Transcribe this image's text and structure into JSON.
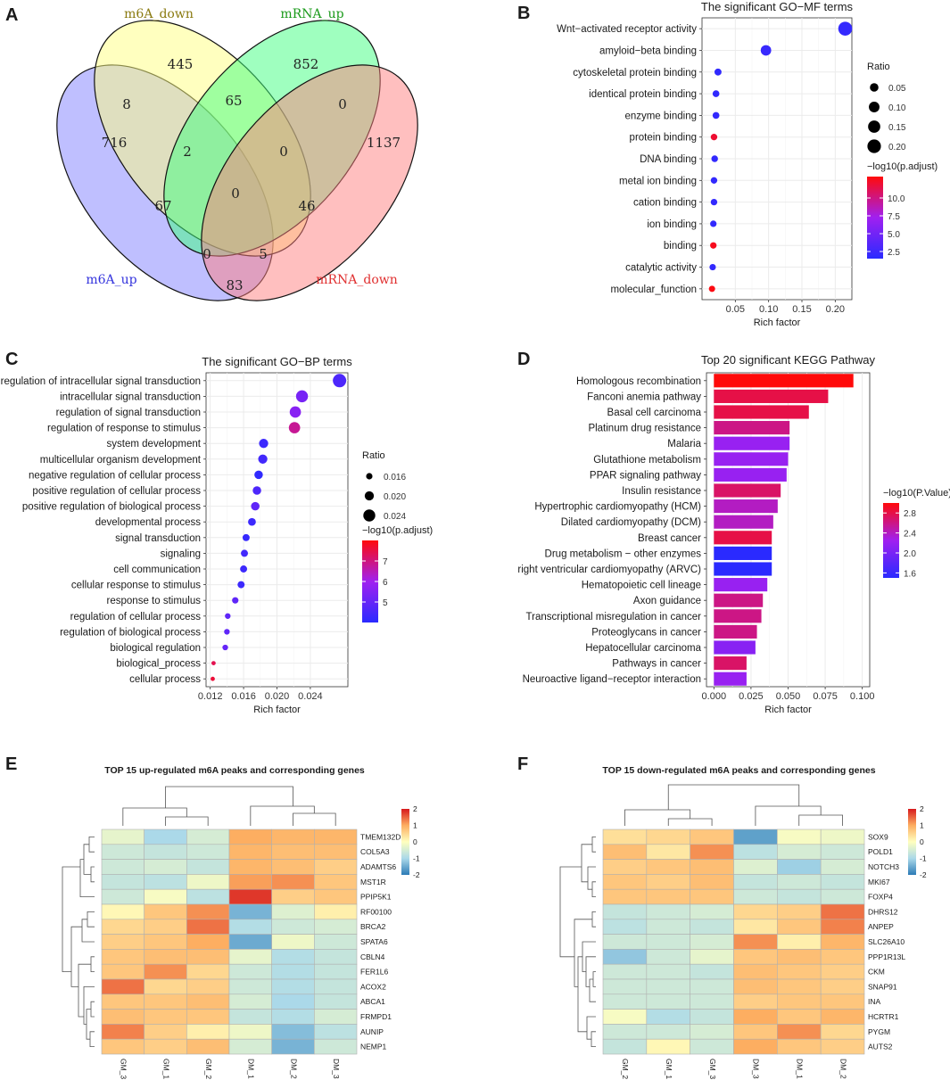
{
  "panel_letters": [
    "A",
    "B",
    "C",
    "D",
    "E",
    "F"
  ],
  "colors": {
    "venn_m6A_up": "#8080ff",
    "venn_m6A_down": "#ffff80",
    "venn_mRNA_up": "#40ff7f",
    "venn_mRNA_down": "#ff8080",
    "venn_label_m6A_up": "#3333dd",
    "venn_label_m6A_down": "#8a7a10",
    "venn_label_mRNA_up": "#1a9a1a",
    "venn_label_mRNA_down": "#e03030",
    "low": "#2a2aff",
    "mid": "#a020f0",
    "high": "#ff0a0a",
    "hm_low": "#2c7bb6",
    "hm_mid": "#ffffbf",
    "hm_high": "#d7191c",
    "panel_bg": "#ffffff",
    "grid": "#ebebeb"
  },
  "chart_data": [
    {
      "id": "A",
      "type": "venn",
      "sets": [
        "m6A_up",
        "m6A_down",
        "mRNA_up",
        "mRNA_down"
      ],
      "regions": [
        {
          "sets": [
            "m6A_up"
          ],
          "value": 716
        },
        {
          "sets": [
            "m6A_down"
          ],
          "value": 445
        },
        {
          "sets": [
            "mRNA_up"
          ],
          "value": 852
        },
        {
          "sets": [
            "mRNA_down"
          ],
          "value": 1137
        },
        {
          "sets": [
            "m6A_up",
            "m6A_down"
          ],
          "value": 8
        },
        {
          "sets": [
            "m6A_down",
            "mRNA_up"
          ],
          "value": 65
        },
        {
          "sets": [
            "mRNA_up",
            "mRNA_down"
          ],
          "value": 0
        },
        {
          "sets": [
            "m6A_up",
            "m6A_down",
            "mRNA_up"
          ],
          "value": 2
        },
        {
          "sets": [
            "m6A_down",
            "mRNA_up",
            "mRNA_down"
          ],
          "value": 0
        },
        {
          "sets": [
            "m6A_up",
            "mRNA_up"
          ],
          "value": 67
        },
        {
          "sets": [
            "m6A_up",
            "m6A_down",
            "mRNA_up",
            "mRNA_down"
          ],
          "value": 0
        },
        {
          "sets": [
            "m6A_down",
            "mRNA_down"
          ],
          "value": 46
        },
        {
          "sets": [
            "m6A_up",
            "mRNA_up",
            "mRNA_down"
          ],
          "value": 0
        },
        {
          "sets": [
            "m6A_up",
            "m6A_down",
            "mRNA_down"
          ],
          "value": 5
        },
        {
          "sets": [
            "m6A_up",
            "mRNA_down"
          ],
          "value": 83
        }
      ]
    },
    {
      "id": "B",
      "type": "scatter",
      "title": "The significant GO−MF terms",
      "xlabel": "Rich factor",
      "xlim": [
        0,
        0.225
      ],
      "xticks": [
        0.05,
        0.1,
        0.15,
        0.2
      ],
      "xtick_labels": [
        "0.05",
        "0.10",
        "0.15",
        "0.20"
      ],
      "categories": [
        "Wnt−activated receptor activity",
        "amyloid−beta binding",
        "cytoskeletal protein binding",
        "identical protein binding",
        "enzyme binding",
        "protein binding",
        "DNA binding",
        "metal ion binding",
        "cation binding",
        "ion binding",
        "binding",
        "catalytic activity",
        "molecular_function"
      ],
      "x": [
        0.215,
        0.096,
        0.024,
        0.021,
        0.021,
        0.018,
        0.019,
        0.018,
        0.018,
        0.017,
        0.017,
        0.016,
        0.015
      ],
      "color_value": [
        2.0,
        2.2,
        1.8,
        1.8,
        1.9,
        12.0,
        1.9,
        1.9,
        1.9,
        1.9,
        12.5,
        1.9,
        12.8
      ],
      "color_range": [
        1.5,
        13.0
      ],
      "size_legend_title": "Ratio",
      "size_legend_values": [
        0.05,
        0.1,
        0.15,
        0.2
      ],
      "size_legend_labels": [
        "0.05",
        "0.10",
        "0.15",
        "0.20"
      ],
      "color_legend_title": "−log10(p.adjust)",
      "color_legend_ticks": [
        2.5,
        5.0,
        7.5,
        10.0
      ],
      "color_legend_labels": [
        "2.5",
        "5.0",
        "7.5",
        "10.0"
      ]
    },
    {
      "id": "C",
      "type": "scatter",
      "title": "The significant GO−BP terms",
      "xlabel": "Rich factor",
      "xlim": [
        0.0115,
        0.0285
      ],
      "xticks": [
        0.012,
        0.016,
        0.02,
        0.024
      ],
      "xtick_labels": [
        "0.012",
        "0.016",
        "0.020",
        "0.024"
      ],
      "categories": [
        "regulation of intracellular signal transduction",
        "intracellular signal transduction",
        "regulation of signal transduction",
        "regulation of response to stimulus",
        "system development",
        "multicellular organism development",
        "negative regulation of cellular process",
        "positive regulation of cellular process",
        "positive regulation of biological process",
        "developmental process",
        "signal transduction",
        "signaling",
        "cell communication",
        "cellular response to stimulus",
        "response to stimulus",
        "regulation of cellular process",
        "regulation of biological process",
        "biological regulation",
        "biological_process",
        "cellular process"
      ],
      "x": [
        0.0275,
        0.023,
        0.0222,
        0.0221,
        0.0184,
        0.0183,
        0.0178,
        0.0176,
        0.0174,
        0.017,
        0.0163,
        0.0161,
        0.016,
        0.0157,
        0.015,
        0.0141,
        0.014,
        0.0138,
        0.0124,
        0.0123
      ],
      "color_value": [
        4.6,
        5.3,
        5.6,
        6.8,
        4.3,
        4.4,
        4.1,
        4.6,
        4.9,
        4.3,
        4.2,
        4.4,
        4.3,
        4.3,
        4.9,
        4.9,
        4.9,
        5.0,
        7.4,
        7.6
      ],
      "size": [
        0.026,
        0.024,
        0.023,
        0.023,
        0.02,
        0.02,
        0.019,
        0.019,
        0.019,
        0.018,
        0.017,
        0.017,
        0.017,
        0.017,
        0.016,
        0.015,
        0.015,
        0.015,
        0.013,
        0.013
      ],
      "color_range": [
        4.0,
        8.0
      ],
      "size_legend_title": "Ratio",
      "size_legend_values": [
        0.016,
        0.02,
        0.024
      ],
      "size_legend_labels": [
        "0.016",
        "0.020",
        "0.024"
      ],
      "color_legend_title": "−log10(p.adjust)",
      "color_legend_ticks": [
        5,
        6,
        7
      ],
      "color_legend_labels": [
        "5",
        "6",
        "7"
      ]
    },
    {
      "id": "D",
      "type": "bar",
      "orientation": "horizontal",
      "title": "Top 20 significant KEGG Pathway",
      "xlabel": "Rich factor",
      "xlim": [
        -0.005,
        0.105
      ],
      "xticks": [
        0,
        0.025,
        0.05,
        0.075,
        0.1
      ],
      "xtick_labels": [
        "0.000",
        "0.025",
        "0.050",
        "0.075",
        "0.100"
      ],
      "categories": [
        "Homologous recombination",
        "Fanconi anemia pathway",
        "Basal cell carcinoma",
        "Platinum drug resistance",
        "Malaria",
        "Glutathione metabolism",
        "PPAR signaling pathway",
        "Insulin resistance",
        "Hypertrophic cardiomyopathy (HCM)",
        "Dilated cardiomyopathy (DCM)",
        "Breast cancer",
        "Drug metabolism − other enzymes",
        "Arrhythmogenic right ventricular cardiomyopathy (ARVC)",
        "Hematopoietic cell lineage",
        "Axon guidance",
        "Transcriptional misregulation in cancer",
        "Proteoglycans in cancer",
        "Hepatocellular carcinoma",
        "Pathways in cancer",
        "Neuroactive ligand−receptor interaction"
      ],
      "values": [
        0.094,
        0.077,
        0.064,
        0.051,
        0.051,
        0.05,
        0.049,
        0.045,
        0.043,
        0.04,
        0.039,
        0.039,
        0.039,
        0.036,
        0.033,
        0.032,
        0.029,
        0.028,
        0.022,
        0.022
      ],
      "color_value": [
        3.0,
        2.8,
        2.8,
        2.6,
        2.2,
        2.2,
        2.2,
        2.7,
        2.4,
        2.4,
        2.8,
        1.5,
        1.5,
        2.2,
        2.6,
        2.6,
        2.6,
        2.1,
        2.7,
        2.2
      ],
      "color_range": [
        1.5,
        3.0
      ],
      "color_legend_title": "−log10(P.Value)",
      "color_legend_ticks": [
        1.6,
        2.0,
        2.4,
        2.8
      ],
      "color_legend_labels": [
        "1.6",
        "2.0",
        "2.4",
        "2.8"
      ]
    },
    {
      "id": "E",
      "type": "heatmap",
      "title": "TOP 15 up-regulated m6A peaks and corresponding genes",
      "columns": [
        "GM_3",
        "GM_1",
        "GM_2",
        "DM_1",
        "DM_2",
        "DM_3"
      ],
      "rows": [
        "TMEM132D",
        "COL5A3",
        "ADAMTS6",
        "MST1R",
        "PPIP5K1",
        "RF00100",
        "BRCA2",
        "SPATA6",
        "CBLN4",
        "FER1L6",
        "ACOX2",
        "ABCA1",
        "FRMPD1",
        "AUNIP",
        "NEMP1"
      ],
      "values": [
        [
          -0.3,
          -1.0,
          -0.5,
          1.0,
          0.9,
          0.9
        ],
        [
          -0.6,
          -0.7,
          -0.6,
          0.9,
          0.8,
          0.8
        ],
        [
          -0.6,
          -0.5,
          -0.7,
          0.9,
          0.8,
          0.6
        ],
        [
          -0.7,
          -0.8,
          -0.2,
          1.1,
          1.2,
          0.7
        ],
        [
          -0.6,
          -0.1,
          -0.8,
          1.8,
          0.6,
          0.7
        ],
        [
          0.1,
          0.7,
          1.2,
          -1.4,
          -0.4,
          0.2
        ],
        [
          0.5,
          0.6,
          1.4,
          -0.9,
          -0.6,
          -0.5
        ],
        [
          0.6,
          0.7,
          1.0,
          -1.5,
          -0.2,
          -0.6
        ],
        [
          0.7,
          0.8,
          0.8,
          -0.3,
          -0.9,
          -0.7
        ],
        [
          0.7,
          1.2,
          0.5,
          -0.6,
          -0.9,
          -0.7
        ],
        [
          1.4,
          0.5,
          0.6,
          -0.6,
          -0.9,
          -0.7
        ],
        [
          0.7,
          0.7,
          0.8,
          -0.5,
          -1.0,
          -0.7
        ],
        [
          0.8,
          0.7,
          0.7,
          -0.7,
          -0.9,
          -0.5
        ],
        [
          1.3,
          0.6,
          0.2,
          -0.2,
          -1.3,
          -0.8
        ],
        [
          0.7,
          0.6,
          0.8,
          -0.5,
          -1.4,
          -0.6
        ]
      ],
      "color_range": [
        -2,
        2
      ],
      "legend_ticks": [
        2,
        1,
        0,
        -1,
        -2
      ],
      "legend_labels": [
        "2",
        "1",
        "0",
        "-1",
        "-2"
      ]
    },
    {
      "id": "F",
      "type": "heatmap",
      "title": "TOP 15 down-regulated m6A peaks and corresponding genes",
      "columns": [
        "GM_2",
        "GM_1",
        "GM_3",
        "DM_3",
        "DM_1",
        "DM_2"
      ],
      "rows": [
        "SOX9",
        "POLD1",
        "NOTCH3",
        "MKI67",
        "FOXP4",
        "DHRS12",
        "ANPEP",
        "SLC26A10",
        "PPP1R13L",
        "CKM",
        "SNAP91",
        "INA",
        "HCRTR1",
        "PYGM",
        "AUTS2"
      ],
      "values": [
        [
          0.4,
          0.5,
          0.7,
          -1.6,
          -0.1,
          -0.2
        ],
        [
          0.8,
          0.3,
          1.2,
          -0.8,
          -0.5,
          -0.6
        ],
        [
          0.6,
          0.7,
          0.8,
          -0.4,
          -1.1,
          -0.5
        ],
        [
          0.7,
          0.6,
          0.8,
          -0.7,
          -0.6,
          -0.7
        ],
        [
          0.7,
          0.7,
          0.7,
          -0.6,
          -0.7,
          -0.6
        ],
        [
          -0.7,
          -0.6,
          -0.5,
          0.5,
          0.6,
          1.4
        ],
        [
          -0.8,
          -0.6,
          -0.7,
          0.3,
          0.7,
          1.3
        ],
        [
          -0.6,
          -0.6,
          -0.5,
          1.2,
          0.2,
          0.9
        ],
        [
          -1.2,
          -0.6,
          -0.3,
          0.7,
          0.8,
          0.7
        ],
        [
          -0.6,
          -0.6,
          -0.7,
          0.8,
          0.7,
          0.6
        ],
        [
          -0.6,
          -0.6,
          -0.6,
          0.8,
          0.7,
          0.6
        ],
        [
          -0.6,
          -0.6,
          -0.6,
          0.6,
          0.7,
          0.7
        ],
        [
          -0.1,
          -0.9,
          -0.7,
          1.0,
          0.7,
          0.9
        ],
        [
          -0.6,
          -0.6,
          -0.5,
          0.7,
          1.2,
          0.5
        ],
        [
          -0.7,
          0.1,
          -0.6,
          1.0,
          0.7,
          0.6
        ]
      ],
      "color_range": [
        -2,
        2
      ],
      "legend_ticks": [
        2,
        1,
        0,
        -1,
        -2
      ],
      "legend_labels": [
        "2",
        "1",
        "0",
        "-1",
        "-2"
      ]
    }
  ]
}
